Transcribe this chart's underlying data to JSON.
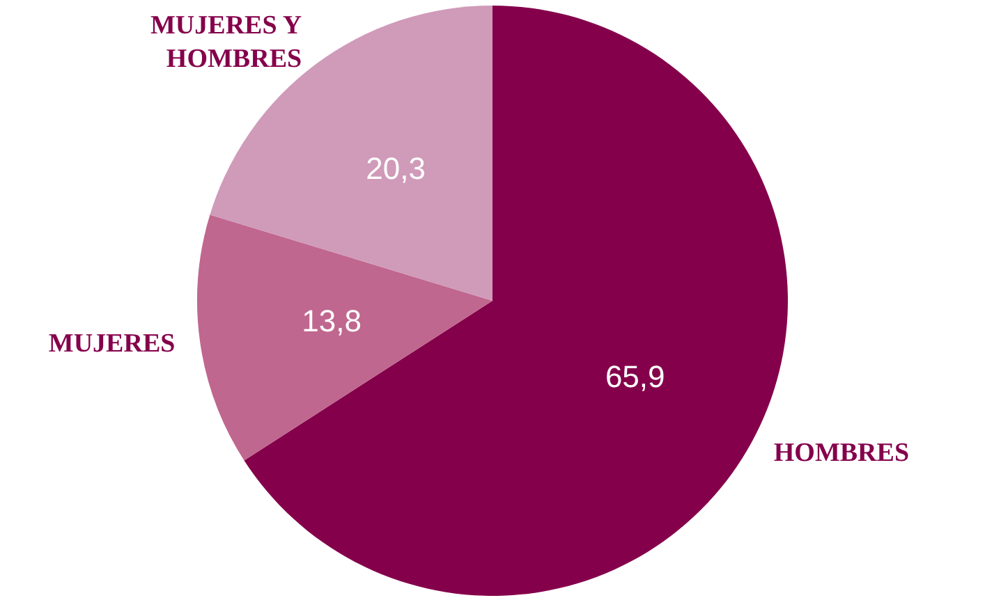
{
  "chart_data": {
    "type": "pie",
    "categories": [
      "HOMBRES",
      "MUJERES",
      "MUJERES Y HOMBRES"
    ],
    "values": [
      65.9,
      13.8,
      20.3
    ],
    "colors": [
      "#85004b",
      "#c0678f",
      "#d09ab9"
    ],
    "value_labels": [
      "65,9",
      "13,8",
      "20,3"
    ]
  }
}
